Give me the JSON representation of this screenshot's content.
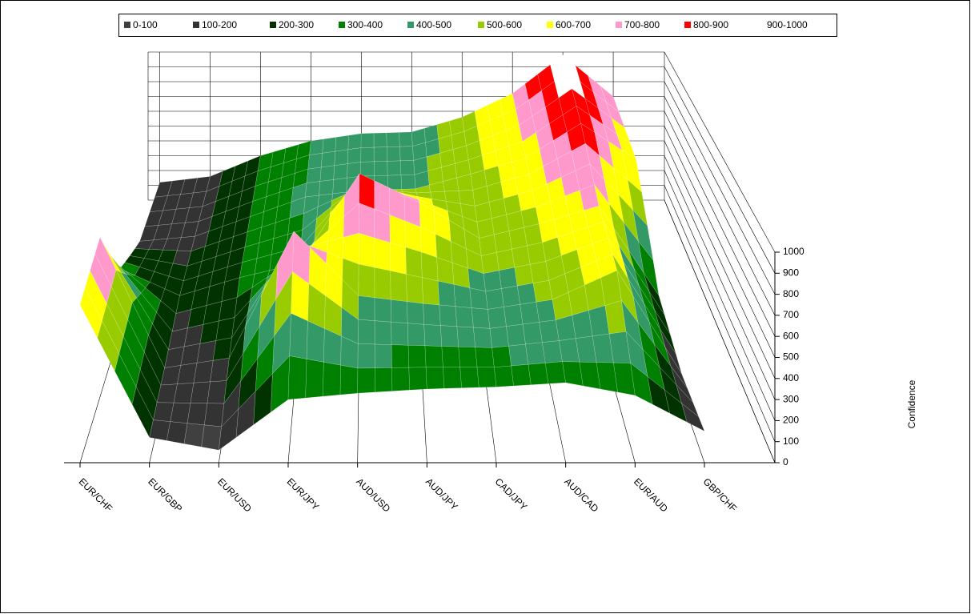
{
  "chart_data": {
    "type": "surface3d",
    "categories": [
      "EUR/CHF",
      "EUR/GBP",
      "EUR/USD",
      "EUR/JPY",
      "AUD/USD",
      "AUD/JPY",
      "CAD/JPY",
      "AUD/CAD",
      "EUR/AUD",
      "GBP/CHF"
    ],
    "surface": [
      [
        750,
        120,
        60,
        300,
        330,
        350,
        360,
        380,
        320,
        150
      ],
      [
        820,
        150,
        200,
        850,
        520,
        480,
        450,
        500,
        650,
        120
      ],
      [
        350,
        200,
        300,
        380,
        880,
        720,
        520,
        600,
        700,
        200
      ],
      [
        150,
        180,
        300,
        420,
        460,
        470,
        560,
        660,
        870,
        650
      ],
      [
        120,
        160,
        300,
        400,
        450,
        460,
        560,
        720,
        980,
        700
      ]
    ],
    "legend": [
      {
        "name": "0-100",
        "color": "#404040"
      },
      {
        "name": "100-200",
        "color": "#333333"
      },
      {
        "name": "200-300",
        "color": "#003300"
      },
      {
        "name": "300-400",
        "color": "#008000"
      },
      {
        "name": "400-500",
        "color": "#339966"
      },
      {
        "name": "500-600",
        "color": "#99cc00"
      },
      {
        "name": "600-700",
        "color": "#ffff00"
      },
      {
        "name": "700-800",
        "color": "#ff99cc"
      },
      {
        "name": "800-900",
        "color": "#ff0000"
      },
      {
        "name": "900-1000",
        "color": "#ffffff"
      }
    ],
    "zlim": [
      0,
      1000
    ],
    "zticks": [
      0,
      100,
      200,
      300,
      400,
      500,
      600,
      700,
      800,
      900,
      1000
    ],
    "zlabel": "Confidence"
  }
}
